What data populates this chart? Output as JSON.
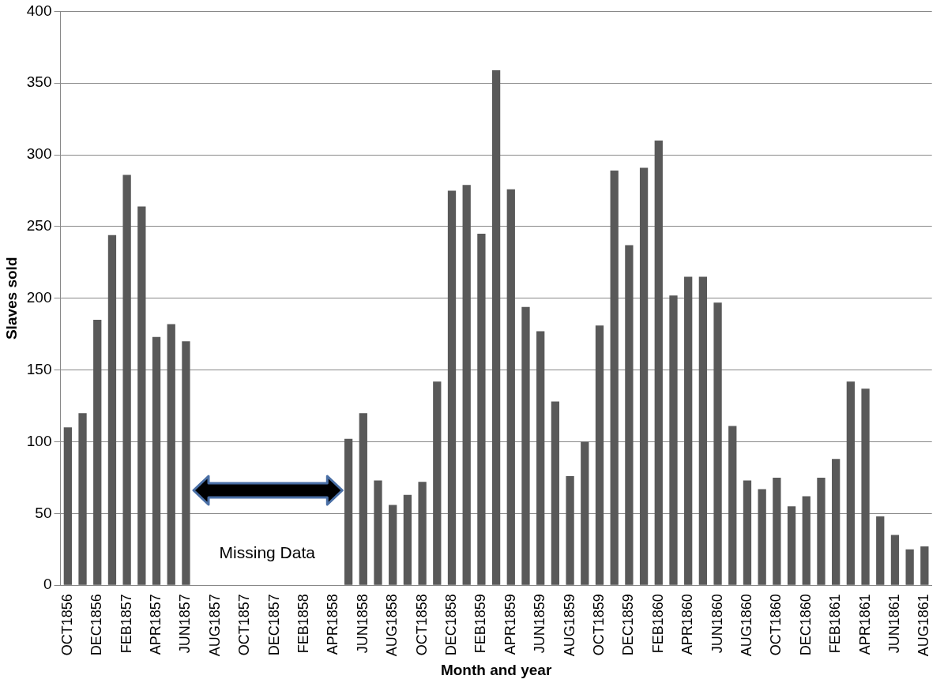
{
  "chart_data": {
    "type": "bar",
    "xlabel": "Month and year",
    "ylabel": "Slaves sold",
    "categories": [
      "OCT1856",
      null,
      "DEC1856",
      null,
      "FEB1857",
      null,
      "APR1857",
      null,
      "JUN1857",
      null,
      "AUG1857",
      null,
      "OCT1857",
      null,
      "DEC1857",
      null,
      "FEB1858",
      null,
      "APR1858",
      null,
      "JUN1858",
      null,
      "AUG1858",
      null,
      "OCT1858",
      null,
      "DEC1858",
      null,
      "FEB1859",
      null,
      "APR1859",
      null,
      "JUN1859",
      null,
      "AUG1859",
      null,
      "OCT1859",
      null,
      "DEC1859",
      null,
      "FEB1860",
      null,
      "APR1860",
      null,
      "JUN1860",
      null,
      "AUG1860",
      null,
      "OCT1860",
      null,
      "DEC1860",
      null,
      "FEB1861",
      null,
      "APR1861",
      null,
      "JUN1861",
      null,
      "AUG1861"
    ],
    "values": [
      110,
      120,
      185,
      244,
      286,
      264,
      173,
      182,
      170,
      null,
      null,
      null,
      null,
      null,
      null,
      null,
      null,
      null,
      null,
      102,
      120,
      73,
      56,
      63,
      72,
      142,
      275,
      279,
      245,
      359,
      276,
      194,
      177,
      128,
      76,
      100,
      181,
      289,
      237,
      291,
      310,
      202,
      215,
      215,
      197,
      111,
      73,
      67,
      75,
      55,
      62,
      75,
      88,
      142,
      137,
      48,
      35,
      25,
      27
    ],
    "color": "#595959",
    "ylim": [
      0,
      400
    ],
    "yticks": [
      0,
      50,
      100,
      150,
      200,
      250,
      300,
      350,
      400
    ],
    "grid": "y",
    "annotations": [
      "Missing Data"
    ]
  }
}
